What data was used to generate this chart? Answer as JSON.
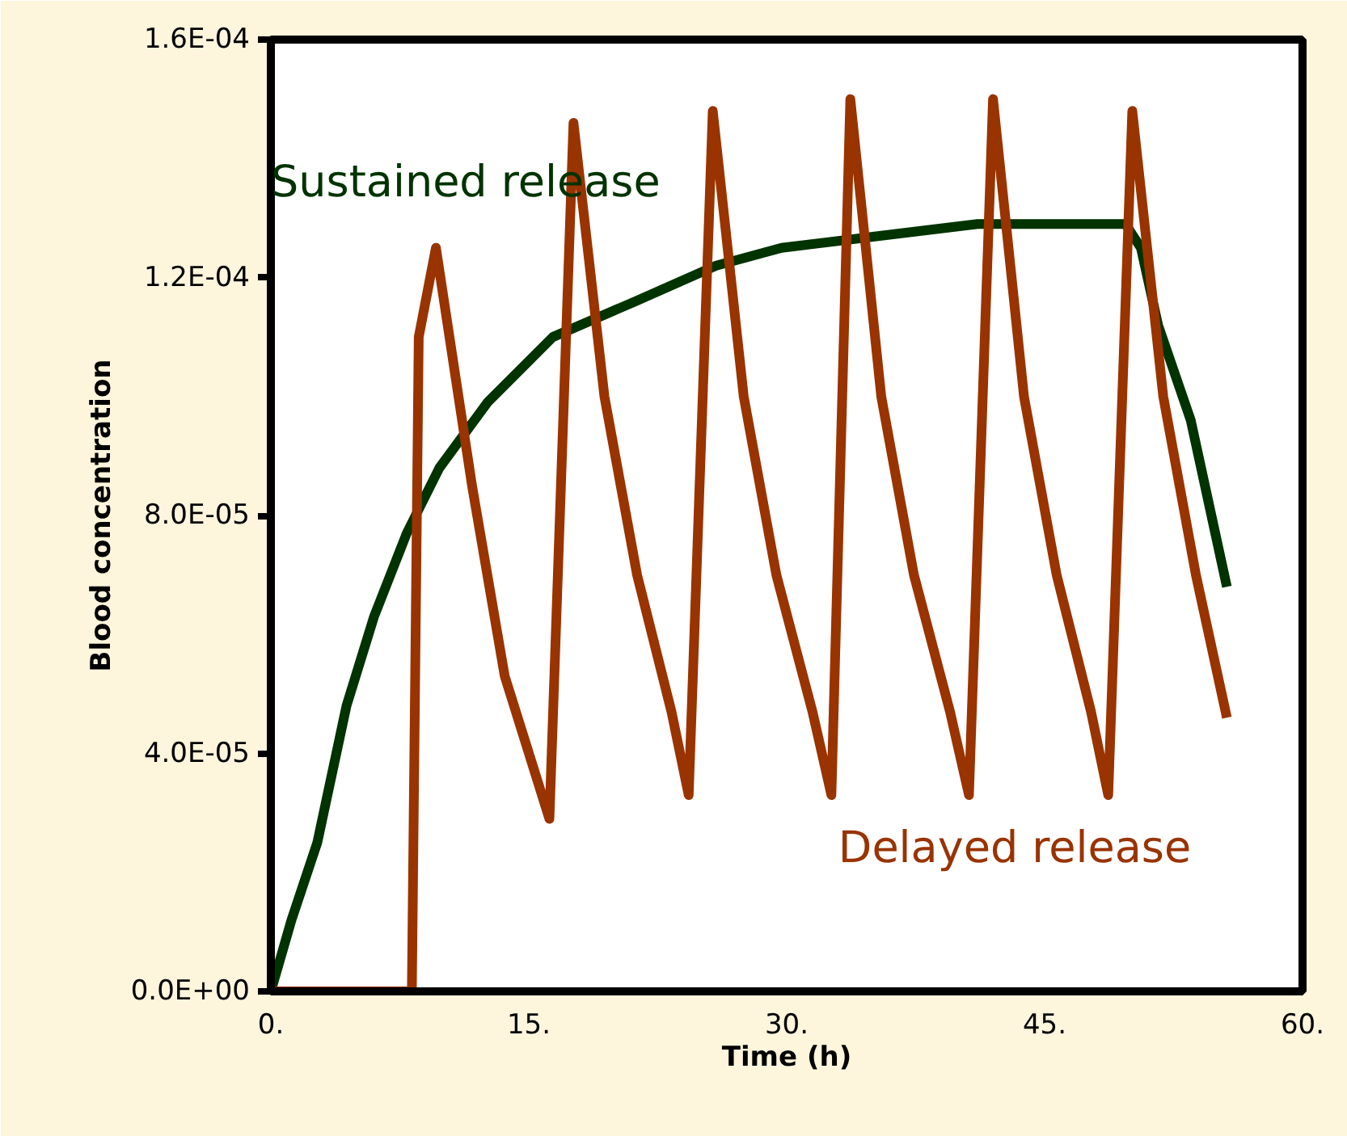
{
  "chart_data": {
    "type": "line",
    "xlabel": "Time (h)",
    "ylabel": "Blood concentration",
    "xlim": [
      0,
      60
    ],
    "ylim": [
      0,
      0.00016
    ],
    "xticks": [
      {
        "value": 0,
        "label": "0."
      },
      {
        "value": 15,
        "label": "15."
      },
      {
        "value": 30,
        "label": "30."
      },
      {
        "value": 45,
        "label": "45."
      },
      {
        "value": 60,
        "label": "60."
      }
    ],
    "yticks": [
      {
        "value": 0,
        "label": "0.0E+00"
      },
      {
        "value": 4e-05,
        "label": "4.0E-05"
      },
      {
        "value": 8e-05,
        "label": "8.0E-05"
      },
      {
        "value": 0.00012,
        "label": "1.2E-04"
      },
      {
        "value": 0.00016,
        "label": "1.6E-04"
      }
    ],
    "grid": false,
    "marker": "none",
    "line_style": "solid",
    "series": [
      {
        "name": "Sustained release",
        "color": "#003300",
        "x": [
          0,
          1.2,
          2.7,
          4.4,
          6.0,
          7.9,
          9.8,
          12.6,
          16.4,
          21.2,
          25.9,
          29.7,
          35.4,
          41.1,
          49.7,
          50.6,
          51.6,
          53.5,
          55.6
        ],
        "values": [
          0,
          1.2e-05,
          2.5e-05,
          4.8e-05,
          6.3e-05,
          7.7e-05,
          8.8e-05,
          9.9e-05,
          0.00011,
          0.000116,
          0.000122,
          0.000125,
          0.000127,
          0.000129,
          0.000129,
          0.000125,
          0.000112,
          9.6e-05,
          6.8e-05
        ]
      },
      {
        "name": "Delayed release",
        "color": "#993300",
        "x": [
          0,
          8.2,
          8.6,
          9.6,
          11.7,
          13.6,
          16.2,
          17.6,
          19.4,
          21.3,
          23.3,
          24.3,
          25.7,
          27.5,
          29.4,
          31.5,
          32.6,
          33.7,
          35.5,
          37.4,
          39.5,
          40.6,
          42.0,
          43.8,
          45.7,
          47.7,
          48.7,
          50.1,
          51.9,
          53.8,
          55.6
        ],
        "values": [
          0,
          0,
          0.00011,
          0.000125,
          8.5e-05,
          5.3e-05,
          2.9e-05,
          0.000146,
          0.0001,
          7e-05,
          4.7e-05,
          3.3e-05,
          0.000148,
          0.0001,
          7e-05,
          4.7e-05,
          3.3e-05,
          0.00015,
          0.0001,
          7e-05,
          4.7e-05,
          3.3e-05,
          0.00015,
          0.0001,
          7e-05,
          4.7e-05,
          3.3e-05,
          0.000148,
          0.0001,
          7e-05,
          4.6e-05
        ]
      }
    ]
  }
}
